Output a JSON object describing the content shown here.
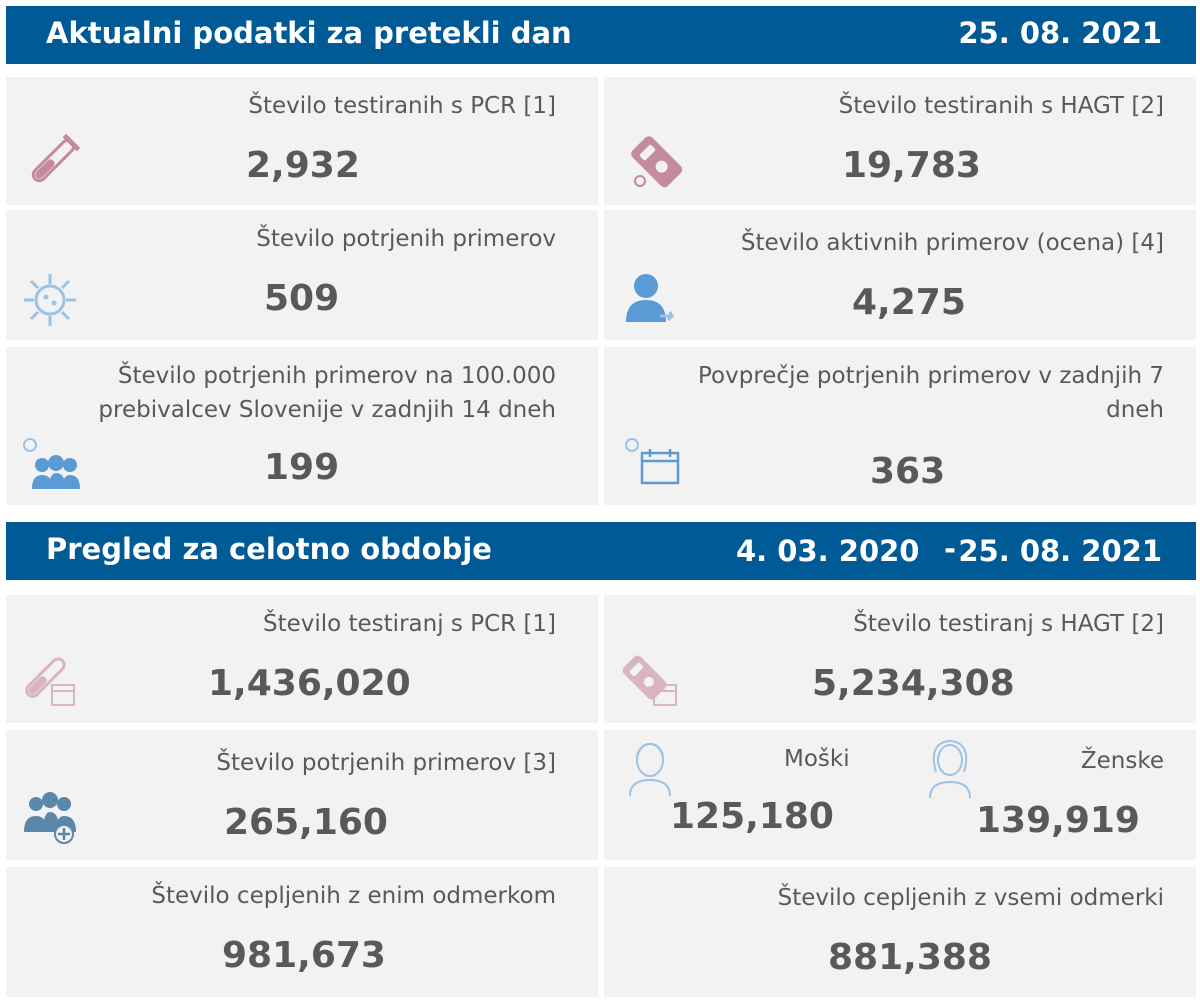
{
  "section_daily": {
    "title": "Aktualni podatki za pretekli dan",
    "date": "25. 08. 2021",
    "cards": {
      "pcr": {
        "label": "Število testiranih s PCR [1]",
        "value": "2,932",
        "icon": "test-tube-icon"
      },
      "hagt": {
        "label": "Število testiranih s HAGT [2]",
        "value": "19,783",
        "icon": "rapid-test-icon"
      },
      "confirmed": {
        "label": "Število potrjenih primerov",
        "value": "509",
        "icon": "virus-icon"
      },
      "active": {
        "label": "Število aktivnih primerov (ocena) [4]",
        "value": "4,275",
        "icon": "person-icon"
      },
      "per100k": {
        "label_line1": "Število potrjenih primerov na 100.000",
        "label_line2": "prebivalcev Slovenije v zadnjih 14 dneh",
        "value": "199",
        "icon": "group-virus-icon"
      },
      "avg7": {
        "label_line1": "Povprečje potrjenih primerov v zadnjih 7",
        "label_line2": "dneh",
        "value": "363",
        "icon": "calendar-virus-icon"
      }
    }
  },
  "section_total": {
    "title": "Pregled za celotno obdobje",
    "date_start": "4. 03. 2020",
    "dash": "-",
    "date_end": "25. 08. 2021",
    "cards": {
      "pcr": {
        "label": "Število testiranj s PCR [1]",
        "value": "1,436,020",
        "icon": "test-tube-calendar-icon"
      },
      "hagt": {
        "label": "Število testiranj s HAGT [2]",
        "value": "5,234,308",
        "icon": "rapid-test-calendar-icon"
      },
      "confirmed": {
        "label": "Število potrjenih primerov [3]",
        "value": "265,160",
        "icon": "group-plus-icon"
      },
      "male": {
        "label": "Moški",
        "value": "125,180",
        "icon": "man-icon"
      },
      "female": {
        "label": "Ženske",
        "value": "139,919",
        "icon": "woman-icon"
      },
      "vacc_one": {
        "label": "Število cepljenih z enim odmerkom",
        "value": "981,673"
      },
      "vacc_all": {
        "label": "Število cepljenih z vsemi odmerki",
        "value": "881,388"
      }
    }
  },
  "colors": {
    "header_bg": "#005a96",
    "card_bg": "#f2f2f2",
    "text": "#595959",
    "icon_pink": "#c48a9e",
    "icon_blue": "#5b9bd5"
  }
}
